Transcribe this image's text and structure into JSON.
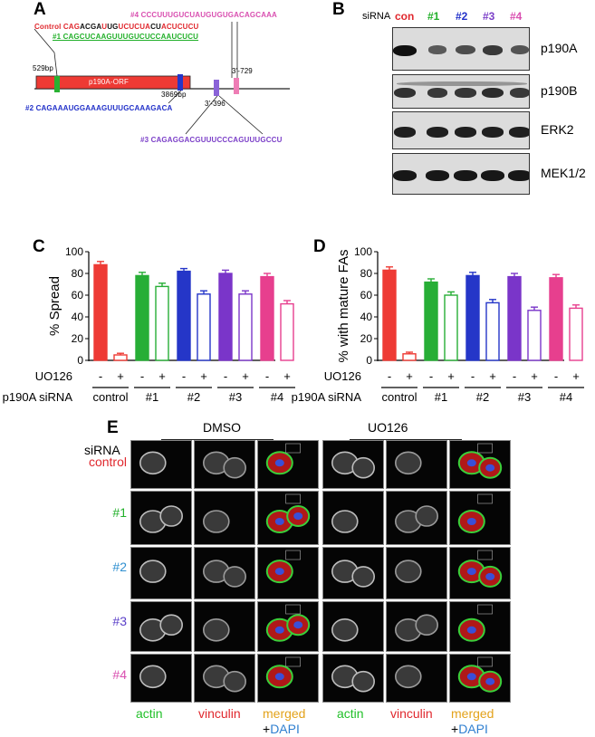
{
  "panel_a": {
    "letter": "A",
    "seq4": "#4 CCCUUUGUCUAUGUGUGACAGCAAA",
    "control_label": "Control",
    "control_seq_parts": [
      {
        "t": "CAG",
        "c": "#e0282e"
      },
      {
        "t": "ACGA",
        "c": "#111111"
      },
      {
        "t": "U",
        "c": "#e0282e"
      },
      {
        "t": "UG",
        "c": "#111111"
      },
      {
        "t": "UCUCUA",
        "c": "#e0282e"
      },
      {
        "t": "CU",
        "c": "#111111"
      },
      {
        "t": "ACUCUCU",
        "c": "#e0282e"
      }
    ],
    "seq1": "#1 CAGCUCAAGUUUGUCUCCAAUCUCU",
    "pos_529": "529bp",
    "orf_label": "p190A-ORF",
    "pos_3869": "3869bp",
    "pos_729": "3'-729",
    "pos_396": "3'-396",
    "seq2": "#2 CAGAAAUGGAAAGUUUGCAAAGACA",
    "seq3": "#3 CAGAGGACGUUUCCCAGUUUGCCU"
  },
  "panel_b": {
    "letter": "B",
    "sirna_label": "siRNA",
    "lanes": [
      {
        "label": "con",
        "color": "#e0282e"
      },
      {
        "label": "#1",
        "color": "#22b02a"
      },
      {
        "label": "#2",
        "color": "#2231c9"
      },
      {
        "label": "#3",
        "color": "#7b3fc8"
      },
      {
        "label": "#4",
        "color": "#d94fb0"
      }
    ],
    "blots": [
      "p190A",
      "p190B",
      "ERK2",
      "MEK1/2"
    ]
  },
  "panel_c": {
    "letter": "C",
    "chart_data": {
      "type": "bar",
      "ylabel": "% Spread",
      "ylim": [
        0,
        100
      ],
      "yticks": [
        "0",
        "20",
        "40",
        "60",
        "80",
        "100"
      ],
      "categories": [
        "control -",
        "control +",
        "#1 -",
        "#1 +",
        "#2 -",
        "#2 +",
        "#3 -",
        "#3 +",
        "#4 -",
        "#4 +"
      ],
      "values": [
        88,
        5,
        78,
        68,
        82,
        61,
        80,
        61,
        77,
        52
      ],
      "errors": [
        3,
        1.5,
        3,
        3,
        2.5,
        3,
        3,
        3,
        3,
        3
      ],
      "colors": [
        "#ee3a34",
        "#ee3a34",
        "#27ae36",
        "#27ae36",
        "#2536c8",
        "#2536c8",
        "#7a35c9",
        "#7a35c9",
        "#e73f8e",
        "#e73f8e"
      ],
      "filled": [
        true,
        false,
        true,
        false,
        true,
        false,
        true,
        false,
        true,
        false
      ]
    }
  },
  "panel_d": {
    "letter": "D",
    "chart_data": {
      "type": "bar",
      "ylabel": "% with mature FAs",
      "ylim": [
        0,
        100
      ],
      "yticks": [
        "0",
        "20",
        "40",
        "60",
        "80",
        "100"
      ],
      "categories": [
        "control -",
        "control +",
        "#1 -",
        "#1 +",
        "#2 -",
        "#2 +",
        "#3 -",
        "#3 +",
        "#4 -",
        "#4 +"
      ],
      "values": [
        83,
        6,
        72,
        60,
        78,
        53,
        77,
        46,
        76,
        48
      ],
      "errors": [
        3,
        1.5,
        3,
        3,
        3,
        3,
        3,
        3,
        3,
        3
      ],
      "colors": [
        "#ee3a34",
        "#ee3a34",
        "#27ae36",
        "#27ae36",
        "#2536c8",
        "#2536c8",
        "#7a35c9",
        "#7a35c9",
        "#e73f8e",
        "#e73f8e"
      ],
      "filled": [
        true,
        false,
        true,
        false,
        true,
        false,
        true,
        false,
        true,
        false
      ]
    }
  },
  "xaxis_labels": {
    "uo126": "UO126",
    "sirna": "p190A siRNA",
    "signs": [
      "-",
      "+",
      "-",
      "+",
      "-",
      "+",
      "-",
      "+",
      "-",
      "+"
    ],
    "groups": [
      "control",
      "#1",
      "#2",
      "#3",
      "#4"
    ]
  },
  "panel_e": {
    "letter": "E",
    "dmso": "DMSO",
    "uo126": "UO126",
    "sirna_label": "siRNA",
    "rows": [
      {
        "label": "control",
        "color": "#e0282e"
      },
      {
        "label": "#1",
        "color": "#22b02a"
      },
      {
        "label": "#2",
        "color": "#2f8fd0"
      },
      {
        "label": "#3",
        "color": "#5a3fc8"
      },
      {
        "label": "#4",
        "color": "#d94fb0"
      }
    ],
    "channels": {
      "actin": "actin",
      "vinculin": "vinculin",
      "merged": "merged",
      "plus": "+",
      "dapi": "DAPI"
    },
    "colors": {
      "actin": "#22c02a",
      "vinculin": "#e0282e",
      "merged": "#e3a21a",
      "dapi": "#2f7fd0"
    }
  }
}
